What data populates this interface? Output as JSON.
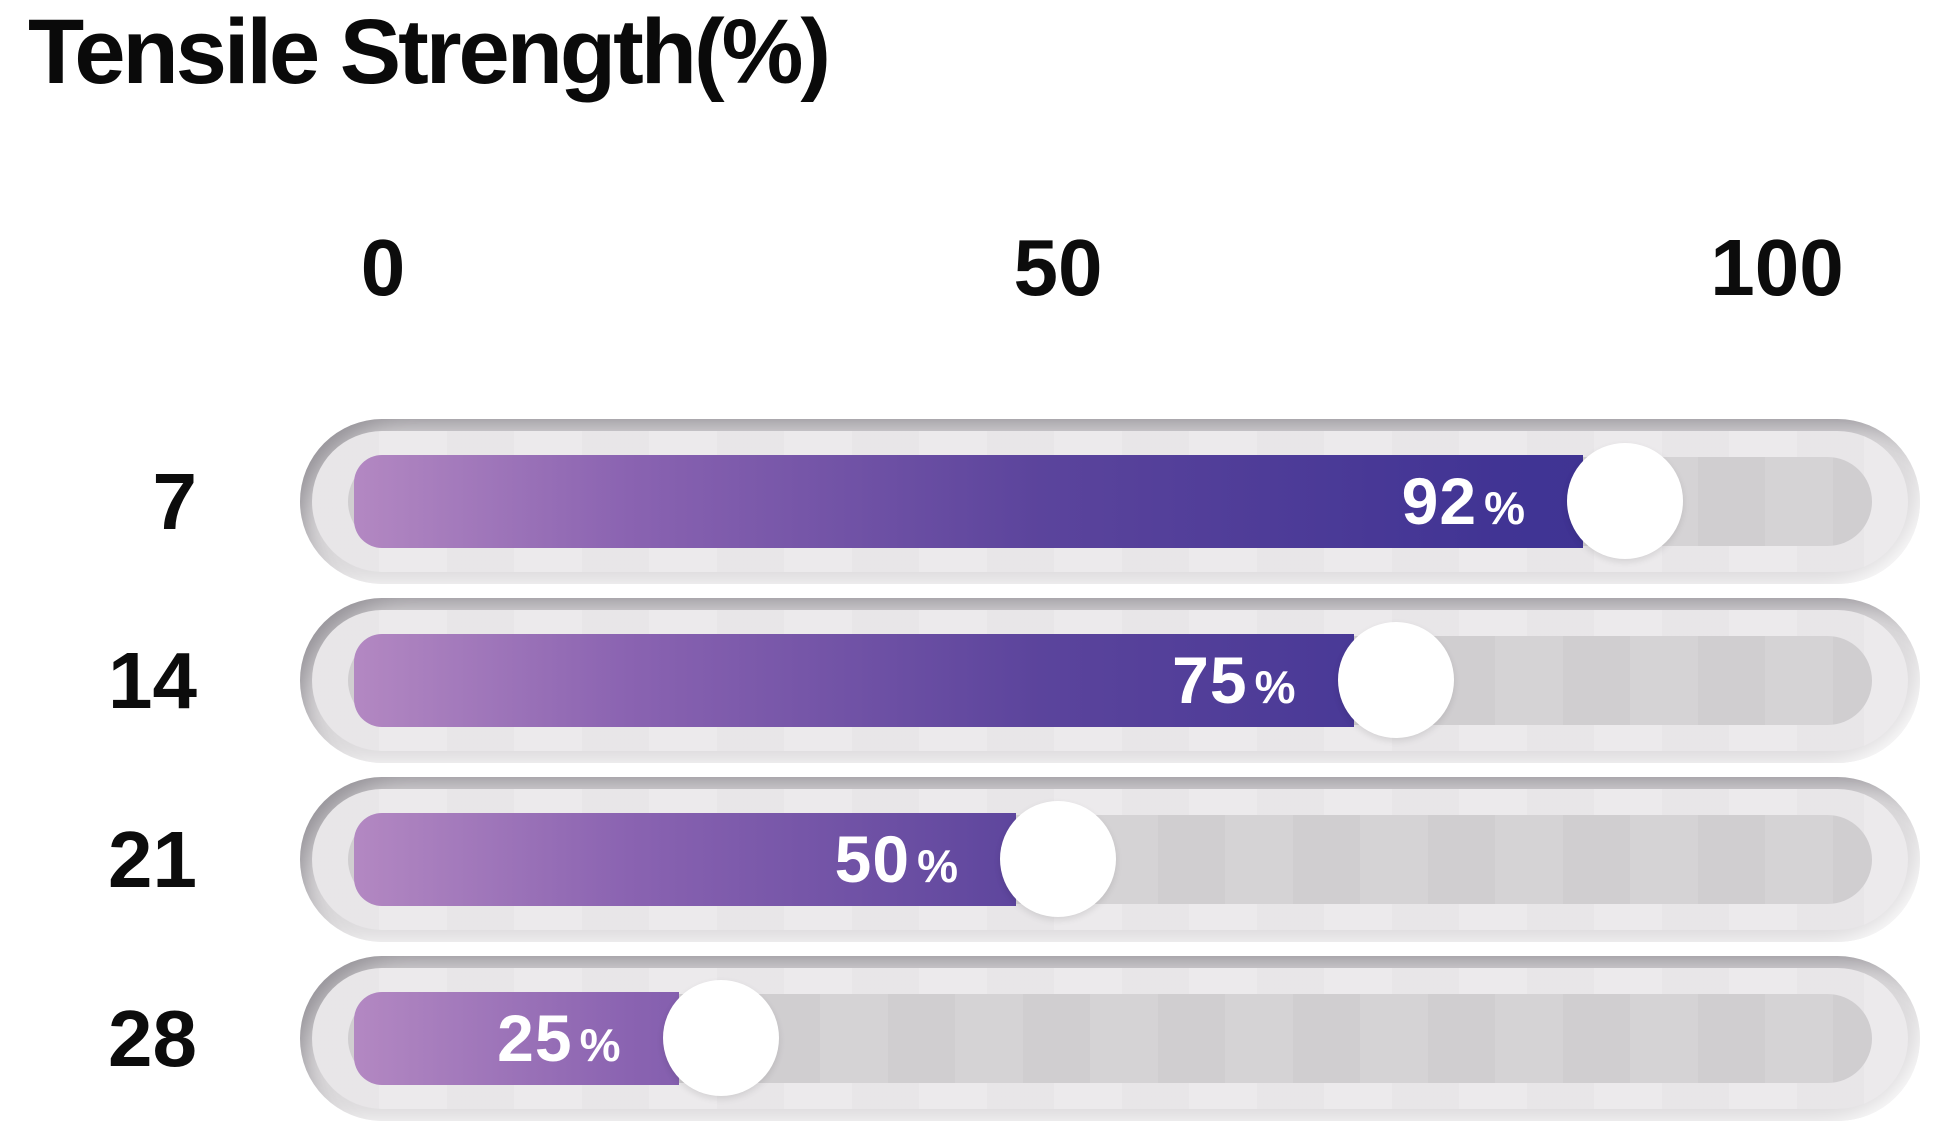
{
  "title": "Tensile Strength(%)",
  "chart_data": {
    "type": "bar",
    "orientation": "horizontal",
    "title": "Tensile Strength(%)",
    "categories": [
      "7",
      "14",
      "21",
      "28"
    ],
    "values": [
      92,
      75,
      50,
      25
    ],
    "value_labels": [
      "92%",
      "75%",
      "50%",
      "25%"
    ],
    "x_ticks": [
      "0",
      "50",
      "100"
    ],
    "xlim": [
      0,
      100
    ],
    "grid": "subtle vertical bands inside tracks",
    "legend": "none",
    "colors": {
      "bar_gradient_start": "#b388c2",
      "bar_gradient_mid": "#5b449c",
      "bar_gradient_end": "#3a3190",
      "track_outer": "#dcdadc",
      "track_inner": "#eceaec",
      "groove": "#d5d3d5",
      "knob": "#ffffff",
      "value_text": "#ffffff",
      "axis_text": "#0c0c0c",
      "background": "#ffffff"
    }
  }
}
